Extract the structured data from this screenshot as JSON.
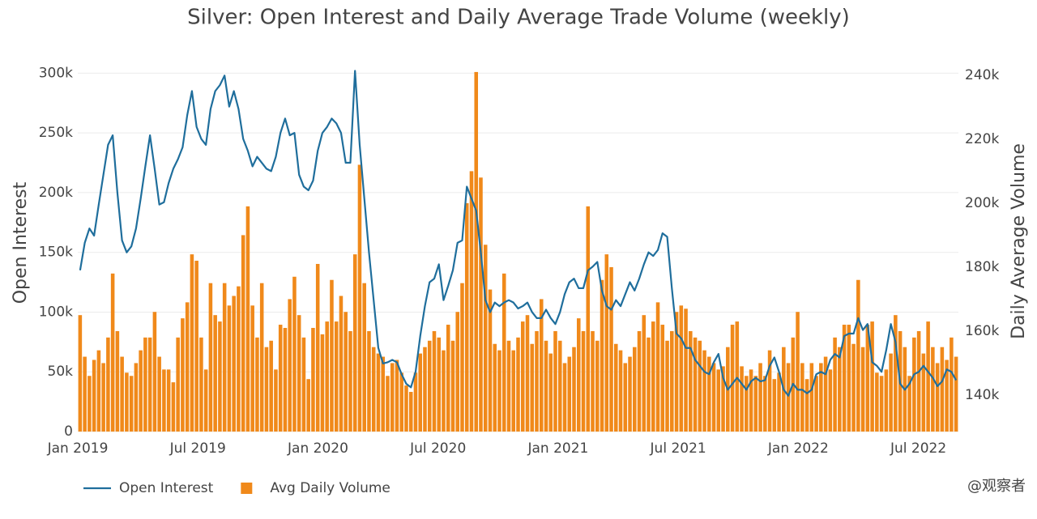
{
  "chart_data": {
    "type": "bar-line",
    "title": "Silver: Open Interest and Daily Average Trade Volume (weekly)",
    "y_label": "Open Interest",
    "y2_label": "Daily Average Volume",
    "watermark": "@观察者",
    "xlim": [
      "2019-01",
      "2022-09"
    ],
    "xticks": [
      {
        "value": "2019-01",
        "label": "Jan 2019"
      },
      {
        "value": "2019-07",
        "label": "Jul 2019"
      },
      {
        "value": "2020-01",
        "label": "Jan 2020"
      },
      {
        "value": "2020-07",
        "label": "Jul 2020"
      },
      {
        "value": "2021-01",
        "label": "Jan 2021"
      },
      {
        "value": "2021-07",
        "label": "Jul 2021"
      },
      {
        "value": "2022-01",
        "label": "Jan 2022"
      },
      {
        "value": "2022-07",
        "label": "Jul 2022"
      }
    ],
    "ylim": [
      0,
      305000
    ],
    "yticks": [
      0,
      {
        "value": 50000,
        "label": "50k"
      },
      {
        "value": 100000,
        "label": "100k"
      },
      {
        "value": 150000,
        "label": "150k"
      },
      {
        "value": 200000,
        "label": "200k"
      },
      {
        "value": 250000,
        "label": "250k"
      },
      {
        "value": 300000,
        "label": "300k"
      }
    ],
    "y2lim": [
      128600,
      242500
    ],
    "y2ticks": [
      {
        "value": 140000,
        "label": "140k"
      },
      {
        "value": 160000,
        "label": "160k"
      },
      {
        "value": 180000,
        "label": "180k"
      },
      {
        "value": 200000,
        "label": "200k"
      },
      {
        "value": 220000,
        "label": "220k"
      },
      {
        "value": 240000,
        "label": "240k"
      }
    ],
    "grid": true,
    "legend": "bottom",
    "series": [
      {
        "name": "Open Interest",
        "type": "line",
        "color": "#1f6e9c",
        "values": [
          135000,
          158000,
          170000,
          164000,
          190000,
          215000,
          240000,
          248000,
          200000,
          160000,
          150000,
          155000,
          170000,
          195000,
          222000,
          248000,
          220000,
          190000,
          192000,
          208000,
          220000,
          228000,
          238000,
          265000,
          285000,
          255000,
          245000,
          240000,
          270000,
          285000,
          290000,
          298000,
          272000,
          285000,
          270000,
          245000,
          235000,
          222000,
          230000,
          225000,
          220000,
          218000,
          230000,
          250000,
          262000,
          248000,
          250000,
          215000,
          205000,
          202000,
          210000,
          235000,
          250000,
          255000,
          262000,
          258000,
          250000,
          225000,
          225000,
          302000,
          240000,
          195000,
          150000,
          110000,
          70000,
          57000,
          58000,
          60000,
          58000,
          48000,
          40000,
          37000,
          50000,
          80000,
          105000,
          125000,
          128000,
          140000,
          110000,
          122000,
          135000,
          158000,
          160000,
          205000,
          195000,
          185000,
          150000,
          110000,
          100000,
          108000,
          105000,
          108000,
          110000,
          108000,
          103000,
          105000,
          108000,
          100000,
          95000,
          95000,
          102000,
          95000,
          90000,
          100000,
          115000,
          125000,
          128000,
          120000,
          120000,
          135000,
          138000,
          142000,
          118000,
          105000,
          102000,
          110000,
          105000,
          115000,
          125000,
          118000,
          128000,
          140000,
          150000,
          147000,
          152000,
          166000,
          163000,
          120000,
          82000,
          78000,
          70000,
          70000,
          60000,
          55000,
          50000,
          48000,
          58000,
          65000,
          45000,
          35000,
          40000,
          45000,
          40000,
          35000,
          42000,
          45000,
          42000,
          43000,
          55000,
          62000,
          50000,
          35000,
          30000,
          40000,
          35000,
          35000,
          32000,
          35000,
          48000,
          50000,
          48000,
          60000,
          65000,
          62000,
          80000,
          82000,
          82000,
          95000,
          85000,
          90000,
          58000,
          55000,
          50000,
          68000,
          90000,
          75000,
          40000,
          35000,
          40000,
          48000,
          50000,
          55000,
          50000,
          45000,
          38000,
          42000,
          52000,
          50000,
          43000
        ]
      },
      {
        "name": "Avg Daily Volume",
        "type": "bar",
        "axis": "y2",
        "color": "#f0891a",
        "values": [
          165000,
          152000,
          146000,
          151000,
          154000,
          150000,
          158000,
          178000,
          160000,
          152000,
          147000,
          146000,
          150000,
          154000,
          158000,
          158000,
          166000,
          152000,
          148000,
          148000,
          144000,
          158000,
          164000,
          169000,
          184000,
          182000,
          158000,
          148000,
          175000,
          165000,
          163000,
          175000,
          168000,
          171000,
          174000,
          190000,
          199000,
          168000,
          158000,
          175000,
          155000,
          157000,
          148000,
          162000,
          161000,
          170000,
          177000,
          165000,
          158000,
          145000,
          161000,
          181000,
          159000,
          163000,
          176000,
          163000,
          171000,
          166000,
          160000,
          184000,
          212000,
          175000,
          160000,
          155000,
          153000,
          152000,
          146000,
          150000,
          151000,
          147000,
          143000,
          141000,
          147000,
          153000,
          155000,
          157000,
          160000,
          158000,
          154000,
          162000,
          157000,
          166000,
          175000,
          200000,
          210000,
          241000,
          208000,
          187000,
          173000,
          156000,
          154000,
          178000,
          157000,
          154000,
          158000,
          163000,
          165000,
          156000,
          160000,
          170000,
          157000,
          153000,
          160000,
          157000,
          150000,
          152000,
          155000,
          164000,
          160000,
          199000,
          160000,
          157000,
          176000,
          184000,
          180000,
          156000,
          154000,
          150000,
          152000,
          155000,
          160000,
          165000,
          158000,
          163000,
          169000,
          162000,
          157000,
          160000,
          166000,
          168000,
          167000,
          160000,
          158000,
          157000,
          154000,
          152000,
          150000,
          148000,
          149000,
          155000,
          162000,
          163000,
          149000,
          146000,
          148000,
          146000,
          150000,
          146000,
          154000,
          145000,
          147000,
          155000,
          150000,
          158000,
          166000,
          150000,
          145000,
          150000,
          146000,
          150000,
          152000,
          148000,
          158000,
          155000,
          162000,
          162000,
          156000,
          176000,
          155000,
          162000,
          163000,
          147000,
          146000,
          148000,
          153000,
          165000,
          160000,
          155000,
          146000,
          158000,
          160000,
          153000,
          163000,
          155000,
          150000,
          155000,
          151000,
          158000,
          152000
        ]
      }
    ]
  }
}
